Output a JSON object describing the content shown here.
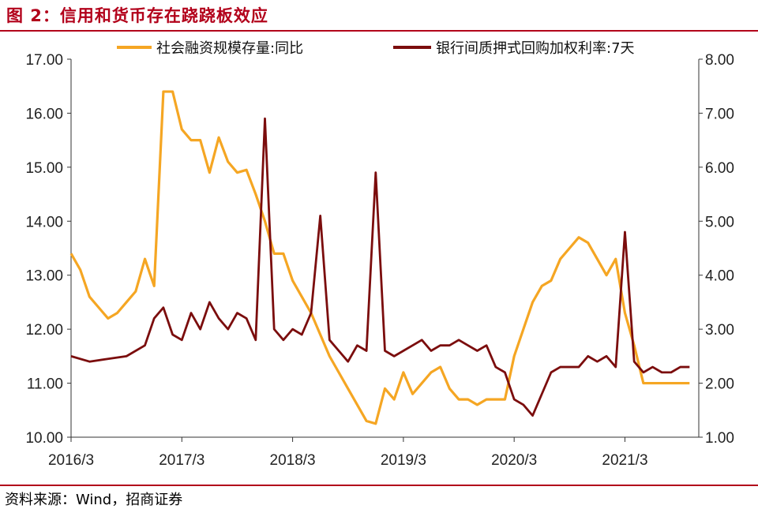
{
  "figure": {
    "title": "图 2：信用和货币存在跷跷板效应",
    "source": "资料来源：Wind，招商证券"
  },
  "colors": {
    "credit": "#f5a623",
    "repo": "#7b0d0d",
    "accent": "#b2001a"
  },
  "chart_data": {
    "type": "line",
    "x_ticks": [
      "2016/3",
      "2017/3",
      "2018/3",
      "2019/3",
      "2020/3",
      "2021/3"
    ],
    "x_range": [
      "2016-03",
      "2021-11"
    ],
    "y_left": {
      "range": [
        10,
        17
      ],
      "ticks": [
        "10.00",
        "11.00",
        "12.00",
        "13.00",
        "14.00",
        "15.00",
        "16.00",
        "17.00"
      ]
    },
    "y_right": {
      "range": [
        1,
        8
      ],
      "ticks": [
        "1.00",
        "2.00",
        "3.00",
        "4.00",
        "5.00",
        "6.00",
        "7.00",
        "8.00"
      ]
    },
    "grid": false,
    "legend": "top",
    "series": [
      {
        "name": "社会融资规模存量:同比",
        "axis": "left",
        "x": [
          "2016-03",
          "2016-04",
          "2016-05",
          "2016-06",
          "2016-07",
          "2016-08",
          "2016-09",
          "2016-10",
          "2016-11",
          "2016-12",
          "2017-01",
          "2017-02",
          "2017-03",
          "2017-04",
          "2017-05",
          "2017-06",
          "2017-07",
          "2017-08",
          "2017-09",
          "2017-10",
          "2017-11",
          "2017-12",
          "2018-01",
          "2018-02",
          "2018-03",
          "2018-04",
          "2018-05",
          "2018-06",
          "2018-07",
          "2018-08",
          "2018-09",
          "2018-10",
          "2018-11",
          "2018-12",
          "2019-01",
          "2019-02",
          "2019-03",
          "2019-04",
          "2019-05",
          "2019-06",
          "2019-07",
          "2019-08",
          "2019-09",
          "2019-10",
          "2019-11",
          "2019-12",
          "2020-01",
          "2020-02",
          "2020-03",
          "2020-04",
          "2020-05",
          "2020-06",
          "2020-07",
          "2020-08",
          "2020-09",
          "2020-10",
          "2020-11",
          "2020-12",
          "2021-01",
          "2021-02",
          "2021-03",
          "2021-04",
          "2021-05",
          "2021-06",
          "2021-07",
          "2021-08",
          "2021-09",
          "2021-10"
        ],
        "values": [
          13.4,
          13.1,
          12.6,
          12.4,
          12.2,
          12.3,
          12.5,
          12.7,
          13.3,
          12.8,
          16.4,
          16.4,
          15.7,
          15.5,
          15.5,
          14.9,
          15.55,
          15.1,
          14.9,
          14.95,
          14.5,
          14.0,
          13.4,
          13.4,
          12.9,
          12.6,
          12.3,
          11.9,
          11.5,
          11.2,
          10.9,
          10.6,
          10.3,
          10.25,
          10.9,
          10.7,
          11.2,
          10.8,
          11.0,
          11.2,
          11.3,
          10.9,
          10.7,
          10.7,
          10.6,
          10.7,
          10.7,
          10.7,
          11.5,
          12.0,
          12.5,
          12.8,
          12.9,
          13.3,
          13.5,
          13.7,
          13.6,
          13.3,
          13.0,
          13.3,
          12.3,
          11.7,
          11.0,
          11.0,
          11.0,
          11.0,
          11.0,
          11.0
        ]
      },
      {
        "name": "银行间质押式回购加权利率:7天",
        "axis": "right",
        "x": [
          "2016-03",
          "2016-05",
          "2016-07",
          "2016-09",
          "2016-11",
          "2016-12",
          "2017-01",
          "2017-02",
          "2017-03",
          "2017-04",
          "2017-05",
          "2017-06",
          "2017-07",
          "2017-08",
          "2017-09",
          "2017-10",
          "2017-11",
          "2017-12",
          "2018-01",
          "2018-02",
          "2018-03",
          "2018-04",
          "2018-05",
          "2018-06",
          "2018-07",
          "2018-08",
          "2018-09",
          "2018-10",
          "2018-11",
          "2018-12",
          "2019-01",
          "2019-02",
          "2019-03",
          "2019-04",
          "2019-05",
          "2019-06",
          "2019-07",
          "2019-08",
          "2019-09",
          "2019-10",
          "2019-11",
          "2019-12",
          "2020-01",
          "2020-02",
          "2020-03",
          "2020-04",
          "2020-05",
          "2020-06",
          "2020-07",
          "2020-08",
          "2020-09",
          "2020-10",
          "2020-11",
          "2020-12",
          "2021-01",
          "2021-02",
          "2021-03",
          "2021-04",
          "2021-05",
          "2021-06",
          "2021-07",
          "2021-08",
          "2021-09",
          "2021-10"
        ],
        "values": [
          2.5,
          2.4,
          2.45,
          2.5,
          2.7,
          3.2,
          3.4,
          2.9,
          2.8,
          3.3,
          3.0,
          3.5,
          3.2,
          3.0,
          3.3,
          3.2,
          2.8,
          6.9,
          3.0,
          2.8,
          3.0,
          2.9,
          3.3,
          5.1,
          2.8,
          2.6,
          2.4,
          2.7,
          2.6,
          5.9,
          2.6,
          2.5,
          2.6,
          2.7,
          2.8,
          2.6,
          2.7,
          2.7,
          2.8,
          2.7,
          2.6,
          2.7,
          2.3,
          2.2,
          1.7,
          1.6,
          1.4,
          1.8,
          2.2,
          2.3,
          2.3,
          2.3,
          2.5,
          2.4,
          2.5,
          2.3,
          4.8,
          2.4,
          2.2,
          2.3,
          2.2,
          2.2,
          2.3,
          2.3
        ]
      }
    ]
  }
}
